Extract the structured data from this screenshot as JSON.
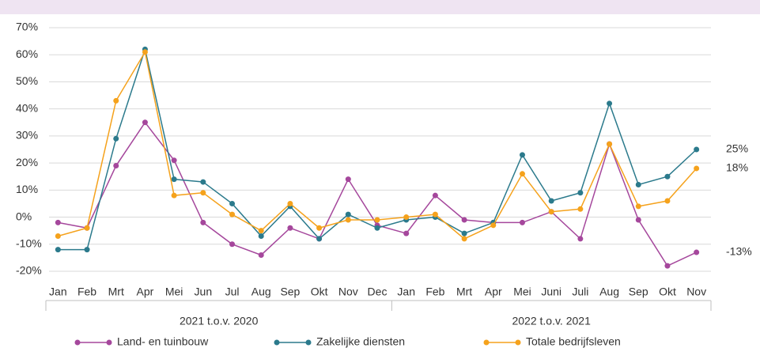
{
  "chart_data": {
    "type": "line",
    "categories": [
      "Jan",
      "Feb",
      "Mrt",
      "Apr",
      "Mei",
      "Jun",
      "Jul",
      "Aug",
      "Sep",
      "Okt",
      "Nov",
      "Dec",
      "Jan",
      "Feb",
      "Mrt",
      "Apr",
      "Mei",
      "Juni",
      "Juli",
      "Aug",
      "Sep",
      "Okt",
      "Nov"
    ],
    "groups": [
      "2021 t.o.v. 2020",
      "2022 t.o.v. 2021"
    ],
    "series": [
      {
        "name": "Land- en tuinbouw",
        "color": "#a5479c",
        "values": [
          -2,
          -4,
          19,
          35,
          21,
          -2,
          -10,
          -14,
          -4,
          -8,
          14,
          -3,
          -6,
          8,
          -1,
          -2,
          -2,
          2,
          -8,
          27,
          -1,
          -18,
          -13
        ],
        "value_labels": [
          null,
          null,
          null,
          null,
          null,
          null,
          null,
          null,
          null,
          null,
          null,
          null,
          null,
          null,
          null,
          null,
          null,
          null,
          null,
          null,
          null,
          null,
          "-13%"
        ]
      },
      {
        "name": "Zakelijke diensten",
        "color": "#2b7a8c",
        "values": [
          -12,
          -12,
          29,
          62,
          14,
          13,
          5,
          -7,
          4,
          -8,
          1,
          -4,
          -1,
          0,
          -6,
          -2,
          23,
          6,
          9,
          42,
          12,
          15,
          25
        ],
        "value_labels": [
          null,
          null,
          null,
          null,
          null,
          null,
          null,
          null,
          null,
          null,
          null,
          null,
          null,
          null,
          null,
          null,
          null,
          null,
          null,
          null,
          null,
          null,
          "25%"
        ]
      },
      {
        "name": "Totale bedrijfsleven",
        "color": "#f5a21c",
        "values": [
          -7,
          -4,
          43,
          61,
          8,
          9,
          1,
          -5,
          5,
          -4,
          -1,
          -1,
          0,
          1,
          -8,
          -3,
          16,
          2,
          3,
          27,
          4,
          6,
          18
        ],
        "value_labels": [
          null,
          null,
          null,
          null,
          null,
          null,
          null,
          null,
          null,
          null,
          null,
          null,
          null,
          null,
          null,
          null,
          null,
          null,
          null,
          null,
          null,
          null,
          "18%"
        ]
      }
    ],
    "ylim": [
      -20,
      70
    ],
    "yticks": [
      {
        "value": -20,
        "label": "-20%"
      },
      {
        "value": -10,
        "label": "-10%"
      },
      {
        "value": 0,
        "label": "0%"
      },
      {
        "value": 10,
        "label": "10%"
      },
      {
        "value": 20,
        "label": "20%"
      },
      {
        "value": 30,
        "label": "30%"
      },
      {
        "value": 40,
        "label": "40%"
      },
      {
        "value": 50,
        "label": "50%"
      },
      {
        "value": 60,
        "label": "60%"
      },
      {
        "value": 70,
        "label": "70%"
      }
    ],
    "grid": true
  }
}
